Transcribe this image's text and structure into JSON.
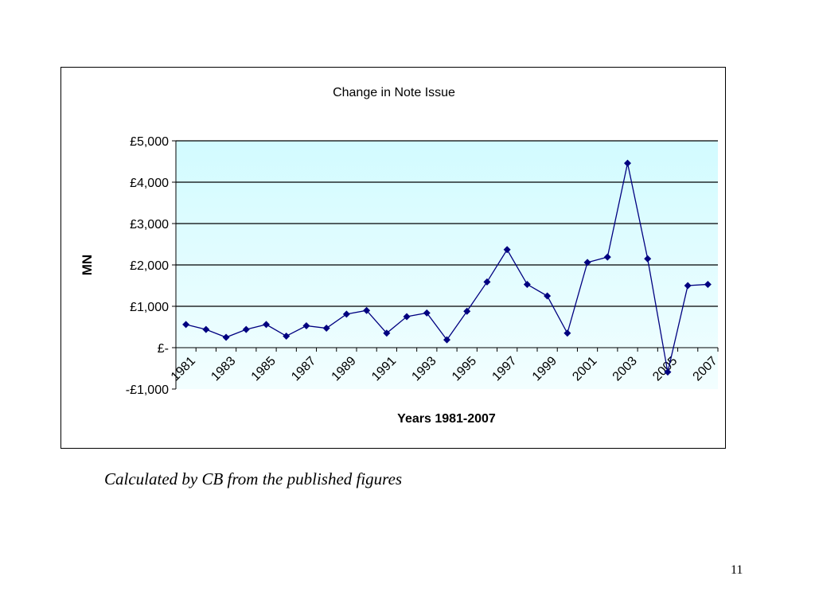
{
  "chart_data": {
    "type": "line",
    "title": "Change in Note Issue",
    "xlabel": "Years 1981-2007",
    "ylabel": "MN",
    "ylim": [
      -1000,
      5000
    ],
    "y_ticks": [
      -1000,
      0,
      1000,
      2000,
      3000,
      4000,
      5000
    ],
    "y_tick_labels": [
      "-£1,000",
      "£-",
      "£1,000",
      "£2,000",
      "£3,000",
      "£4,000",
      "£5,000"
    ],
    "x_tick_labels": [
      "1981",
      "1983",
      "1985",
      "1987",
      "1989",
      "1991",
      "1993",
      "1995",
      "1997",
      "1999",
      "2001",
      "2003",
      "2005",
      "2007"
    ],
    "grid": true,
    "legend": "none",
    "plot_background": "#d9fbff",
    "series": [
      {
        "color": "#000080",
        "marker": "diamond",
        "x": [
          1981,
          1982,
          1983,
          1984,
          1985,
          1986,
          1987,
          1988,
          1989,
          1990,
          1991,
          1992,
          1993,
          1994,
          1995,
          1996,
          1997,
          1998,
          1999,
          2000,
          2001,
          2002,
          2003,
          2004,
          2005,
          2006,
          2007
        ],
        "values": [
          560,
          440,
          250,
          440,
          560,
          280,
          530,
          470,
          810,
          900,
          350,
          750,
          840,
          190,
          880,
          1590,
          2370,
          1530,
          1250,
          350,
          2060,
          2190,
          4460,
          2150,
          -590,
          1500,
          1530
        ]
      }
    ]
  },
  "caption": "Calculated by CB from the published figures",
  "page_number": "11"
}
